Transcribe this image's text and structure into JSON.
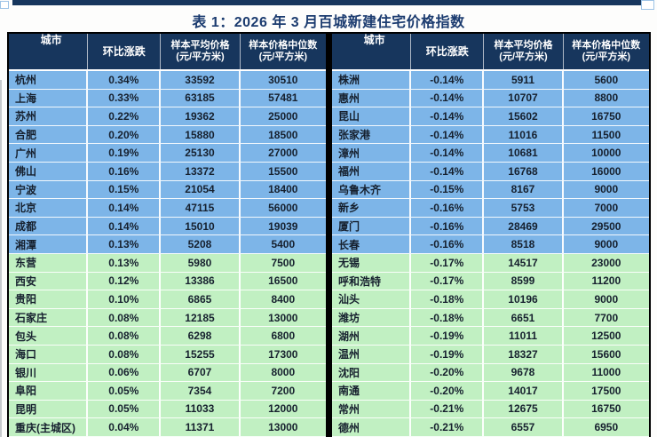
{
  "page": {
    "title": "表 1：2026 年 3 月百城新建住宅价格指数"
  },
  "colors": {
    "header_bg": "#17365D",
    "row_blue": "#7DB5E8",
    "row_green": "#C1F0C2",
    "accent_navy": "#1B3B6F"
  },
  "table": {
    "blue_row_count": 10,
    "headers": {
      "city": "城市",
      "change": "环比涨跌",
      "avg_line1": "样本平均价格",
      "avg_line2": "(元/平方米)",
      "median_line1": "样本价格中位数",
      "median_line2": "(元/平方米)"
    },
    "left_rows": [
      {
        "city": "杭州",
        "change": "0.34%",
        "avg": "33592",
        "median": "30510"
      },
      {
        "city": "上海",
        "change": "0.33%",
        "avg": "63185",
        "median": "57481"
      },
      {
        "city": "苏州",
        "change": "0.22%",
        "avg": "19362",
        "median": "25000"
      },
      {
        "city": "合肥",
        "change": "0.20%",
        "avg": "15880",
        "median": "18500"
      },
      {
        "city": "广州",
        "change": "0.19%",
        "avg": "25130",
        "median": "27000"
      },
      {
        "city": "佛山",
        "change": "0.16%",
        "avg": "13372",
        "median": "15500"
      },
      {
        "city": "宁波",
        "change": "0.15%",
        "avg": "21054",
        "median": "18400"
      },
      {
        "city": "北京",
        "change": "0.14%",
        "avg": "47115",
        "median": "56000"
      },
      {
        "city": "成都",
        "change": "0.14%",
        "avg": "15010",
        "median": "19039"
      },
      {
        "city": "湘潭",
        "change": "0.13%",
        "avg": "5208",
        "median": "5400"
      },
      {
        "city": "东营",
        "change": "0.13%",
        "avg": "5980",
        "median": "7500"
      },
      {
        "city": "西安",
        "change": "0.12%",
        "avg": "13386",
        "median": "16500"
      },
      {
        "city": "贵阳",
        "change": "0.10%",
        "avg": "6865",
        "median": "8400"
      },
      {
        "city": "石家庄",
        "change": "0.08%",
        "avg": "12185",
        "median": "13000"
      },
      {
        "city": "包头",
        "change": "0.08%",
        "avg": "6298",
        "median": "6800"
      },
      {
        "city": "海口",
        "change": "0.08%",
        "avg": "15255",
        "median": "17300"
      },
      {
        "city": "银川",
        "change": "0.06%",
        "avg": "6707",
        "median": "8000"
      },
      {
        "city": "阜阳",
        "change": "0.05%",
        "avg": "7354",
        "median": "7200"
      },
      {
        "city": "昆明",
        "change": "0.05%",
        "avg": "11033",
        "median": "12000"
      },
      {
        "city": "重庆(主城区)",
        "change": "0.04%",
        "avg": "11371",
        "median": "13000"
      }
    ],
    "right_rows": [
      {
        "city": "株洲",
        "change": "-0.14%",
        "avg": "5911",
        "median": "5600"
      },
      {
        "city": "惠州",
        "change": "-0.14%",
        "avg": "10707",
        "median": "8800"
      },
      {
        "city": "昆山",
        "change": "-0.14%",
        "avg": "15602",
        "median": "16750"
      },
      {
        "city": "张家港",
        "change": "-0.14%",
        "avg": "11016",
        "median": "11500"
      },
      {
        "city": "漳州",
        "change": "-0.14%",
        "avg": "10681",
        "median": "10000"
      },
      {
        "city": "福州",
        "change": "-0.14%",
        "avg": "16768",
        "median": "16000"
      },
      {
        "city": "乌鲁木齐",
        "change": "-0.15%",
        "avg": "8167",
        "median": "9000"
      },
      {
        "city": "新乡",
        "change": "-0.16%",
        "avg": "5753",
        "median": "7000"
      },
      {
        "city": "厦门",
        "change": "-0.16%",
        "avg": "28469",
        "median": "29500"
      },
      {
        "city": "长春",
        "change": "-0.16%",
        "avg": "8518",
        "median": "9000"
      },
      {
        "city": "无锡",
        "change": "-0.17%",
        "avg": "14517",
        "median": "23000"
      },
      {
        "city": "呼和浩特",
        "change": "-0.17%",
        "avg": "8599",
        "median": "11200"
      },
      {
        "city": "汕头",
        "change": "-0.18%",
        "avg": "10196",
        "median": "9000"
      },
      {
        "city": "潍坊",
        "change": "-0.18%",
        "avg": "6651",
        "median": "7700"
      },
      {
        "city": "湖州",
        "change": "-0.19%",
        "avg": "11011",
        "median": "12500"
      },
      {
        "city": "温州",
        "change": "-0.19%",
        "avg": "18327",
        "median": "15600"
      },
      {
        "city": "沈阳",
        "change": "-0.20%",
        "avg": "9678",
        "median": "11000"
      },
      {
        "city": "南通",
        "change": "-0.20%",
        "avg": "14017",
        "median": "17500"
      },
      {
        "city": "常州",
        "change": "-0.21%",
        "avg": "12675",
        "median": "16750"
      },
      {
        "city": "德州",
        "change": "-0.21%",
        "avg": "6557",
        "median": "6950"
      }
    ]
  }
}
